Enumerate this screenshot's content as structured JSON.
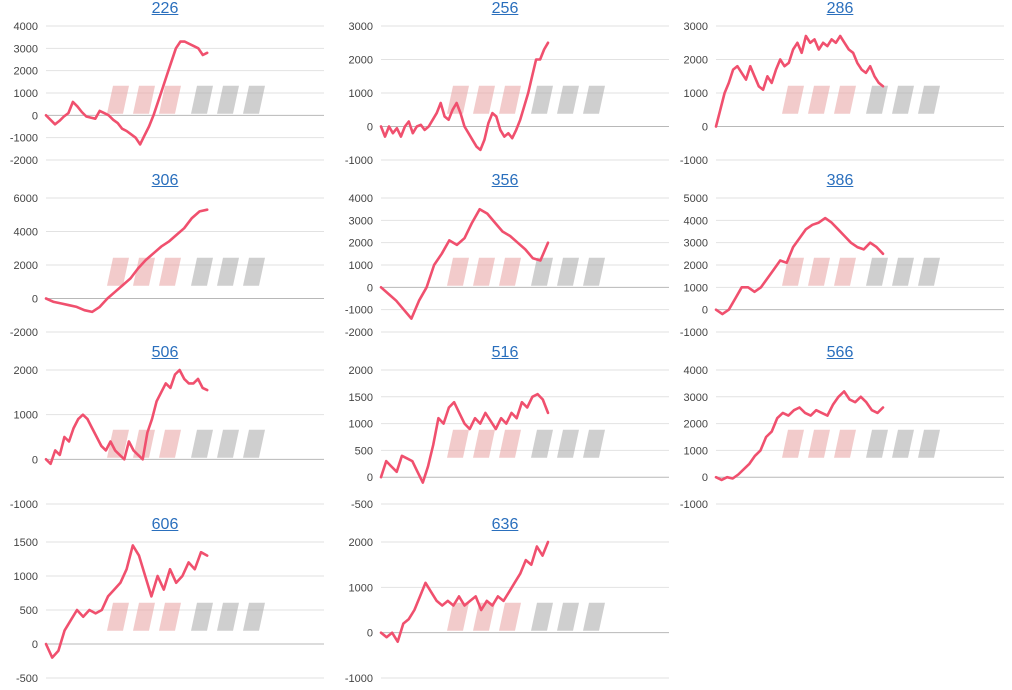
{
  "chart_data": [
    {
      "type": "line",
      "title": "226",
      "ylim": [
        -2000,
        4000
      ],
      "yticks": [
        4000,
        3000,
        2000,
        1000,
        0,
        -1000,
        -2000
      ],
      "series": [
        {
          "color": "#f0506e",
          "values": [
            0,
            -200,
            -400,
            -250,
            -50,
            100,
            600,
            400,
            150,
            -50,
            -100,
            -150,
            200,
            100,
            0,
            -200,
            -350,
            -600,
            -700,
            -850,
            -1000,
            -1300,
            -900,
            -500,
            0,
            600,
            1200,
            1800,
            2400,
            3000,
            3300,
            3300,
            3200,
            3100,
            3000,
            2700,
            2800
          ]
        }
      ]
    },
    {
      "type": "line",
      "title": "256",
      "ylim": [
        -1000,
        3000
      ],
      "yticks": [
        3000,
        2000,
        1000,
        0,
        -1000
      ],
      "series": [
        {
          "color": "#f0506e",
          "values": [
            0,
            -300,
            0,
            -200,
            -50,
            -300,
            0,
            150,
            -200,
            0,
            50,
            -100,
            0,
            200,
            400,
            700,
            300,
            200,
            500,
            700,
            400,
            0,
            -200,
            -400,
            -600,
            -700,
            -400,
            100,
            400,
            300,
            -100,
            -300,
            -200,
            -350,
            -100,
            200,
            600,
            1000,
            1500,
            2000,
            2000,
            2300,
            2500
          ]
        }
      ]
    },
    {
      "type": "line",
      "title": "286",
      "ylim": [
        -1000,
        3000
      ],
      "yticks": [
        3000,
        2000,
        1000,
        0,
        -1000
      ],
      "series": [
        {
          "color": "#f0506e",
          "values": [
            0,
            500,
            1000,
            1300,
            1700,
            1800,
            1600,
            1400,
            1800,
            1500,
            1200,
            1100,
            1500,
            1300,
            1700,
            2000,
            1800,
            1900,
            2300,
            2500,
            2200,
            2700,
            2500,
            2600,
            2300,
            2500,
            2400,
            2600,
            2500,
            2700,
            2500,
            2300,
            2200,
            1900,
            1700,
            1600,
            1800,
            1500,
            1300,
            1200
          ]
        }
      ]
    },
    {
      "type": "line",
      "title": "306",
      "ylim": [
        -2000,
        6000
      ],
      "yticks": [
        6000,
        4000,
        2000,
        0,
        -2000
      ],
      "series": [
        {
          "color": "#f0506e",
          "values": [
            0,
            -200,
            -300,
            -400,
            -500,
            -700,
            -800,
            -500,
            0,
            400,
            800,
            1200,
            1800,
            2300,
            2700,
            3100,
            3400,
            3800,
            4200,
            4800,
            5200,
            5300
          ]
        }
      ]
    },
    {
      "type": "line",
      "title": "356",
      "ylim": [
        -2000,
        4000
      ],
      "yticks": [
        4000,
        3000,
        2000,
        1000,
        0,
        -1000,
        -2000
      ],
      "series": [
        {
          "color": "#f0506e",
          "values": [
            0,
            -300,
            -600,
            -1000,
            -1400,
            -600,
            0,
            1000,
            1500,
            2100,
            1900,
            2200,
            2900,
            3500,
            3300,
            2900,
            2500,
            2300,
            2000,
            1700,
            1300,
            1200,
            2000
          ]
        }
      ]
    },
    {
      "type": "line",
      "title": "386",
      "ylim": [
        -1000,
        5000
      ],
      "yticks": [
        5000,
        4000,
        3000,
        2000,
        1000,
        0,
        -1000
      ],
      "series": [
        {
          "color": "#f0506e",
          "values": [
            0,
            -200,
            0,
            500,
            1000,
            1000,
            800,
            1000,
            1400,
            1800,
            2200,
            2100,
            2800,
            3200,
            3600,
            3800,
            3900,
            4100,
            3900,
            3600,
            3300,
            3000,
            2800,
            2700,
            3000,
            2800,
            2500
          ]
        }
      ]
    },
    {
      "type": "line",
      "title": "506",
      "ylim": [
        -1000,
        2000
      ],
      "yticks": [
        2000,
        1000,
        0,
        -1000
      ],
      "series": [
        {
          "color": "#f0506e",
          "values": [
            0,
            -100,
            200,
            100,
            500,
            400,
            700,
            900,
            1000,
            900,
            700,
            500,
            300,
            200,
            400,
            200,
            100,
            0,
            400,
            200,
            100,
            0,
            600,
            900,
            1300,
            1500,
            1700,
            1600,
            1900,
            2000,
            1800,
            1700,
            1700,
            1800,
            1600,
            1550
          ]
        }
      ]
    },
    {
      "type": "line",
      "title": "516",
      "ylim": [
        -500,
        2000
      ],
      "yticks": [
        2000,
        1500,
        1000,
        500,
        0,
        -500
      ],
      "series": [
        {
          "color": "#f0506e",
          "values": [
            0,
            300,
            200,
            100,
            400,
            350,
            300,
            100,
            -100,
            200,
            600,
            1100,
            1000,
            1300,
            1400,
            1200,
            1000,
            900,
            1100,
            1000,
            1200,
            1050,
            900,
            1100,
            1000,
            1200,
            1100,
            1400,
            1300,
            1500,
            1550,
            1450,
            1200
          ]
        }
      ]
    },
    {
      "type": "line",
      "title": "566",
      "ylim": [
        -1000,
        4000
      ],
      "yticks": [
        4000,
        3000,
        2000,
        1000,
        0,
        -1000
      ],
      "series": [
        {
          "color": "#f0506e",
          "values": [
            0,
            -100,
            0,
            -50,
            100,
            300,
            500,
            800,
            1000,
            1500,
            1700,
            2200,
            2400,
            2300,
            2500,
            2600,
            2400,
            2300,
            2500,
            2400,
            2300,
            2700,
            3000,
            3200,
            2900,
            2800,
            3000,
            2800,
            2500,
            2400,
            2600
          ]
        }
      ]
    },
    {
      "type": "line",
      "title": "606",
      "ylim": [
        -500,
        1500
      ],
      "yticks": [
        1500,
        1000,
        500,
        0,
        -500
      ],
      "series": [
        {
          "color": "#f0506e",
          "values": [
            0,
            -200,
            -100,
            200,
            350,
            500,
            400,
            500,
            450,
            500,
            700,
            800,
            900,
            1100,
            1450,
            1300,
            1000,
            700,
            1000,
            800,
            1100,
            900,
            1000,
            1200,
            1100,
            1350,
            1300
          ]
        }
      ]
    },
    {
      "type": "line",
      "title": "636",
      "ylim": [
        -1000,
        2000
      ],
      "yticks": [
        2000,
        1000,
        0,
        -1000
      ],
      "series": [
        {
          "color": "#f0506e",
          "values": [
            0,
            -100,
            0,
            -200,
            200,
            300,
            500,
            800,
            1100,
            900,
            700,
            600,
            700,
            600,
            800,
            600,
            700,
            800,
            500,
            700,
            600,
            800,
            700,
            900,
            1100,
            1300,
            1600,
            1500,
            1900,
            1700,
            2000
          ]
        }
      ]
    }
  ]
}
